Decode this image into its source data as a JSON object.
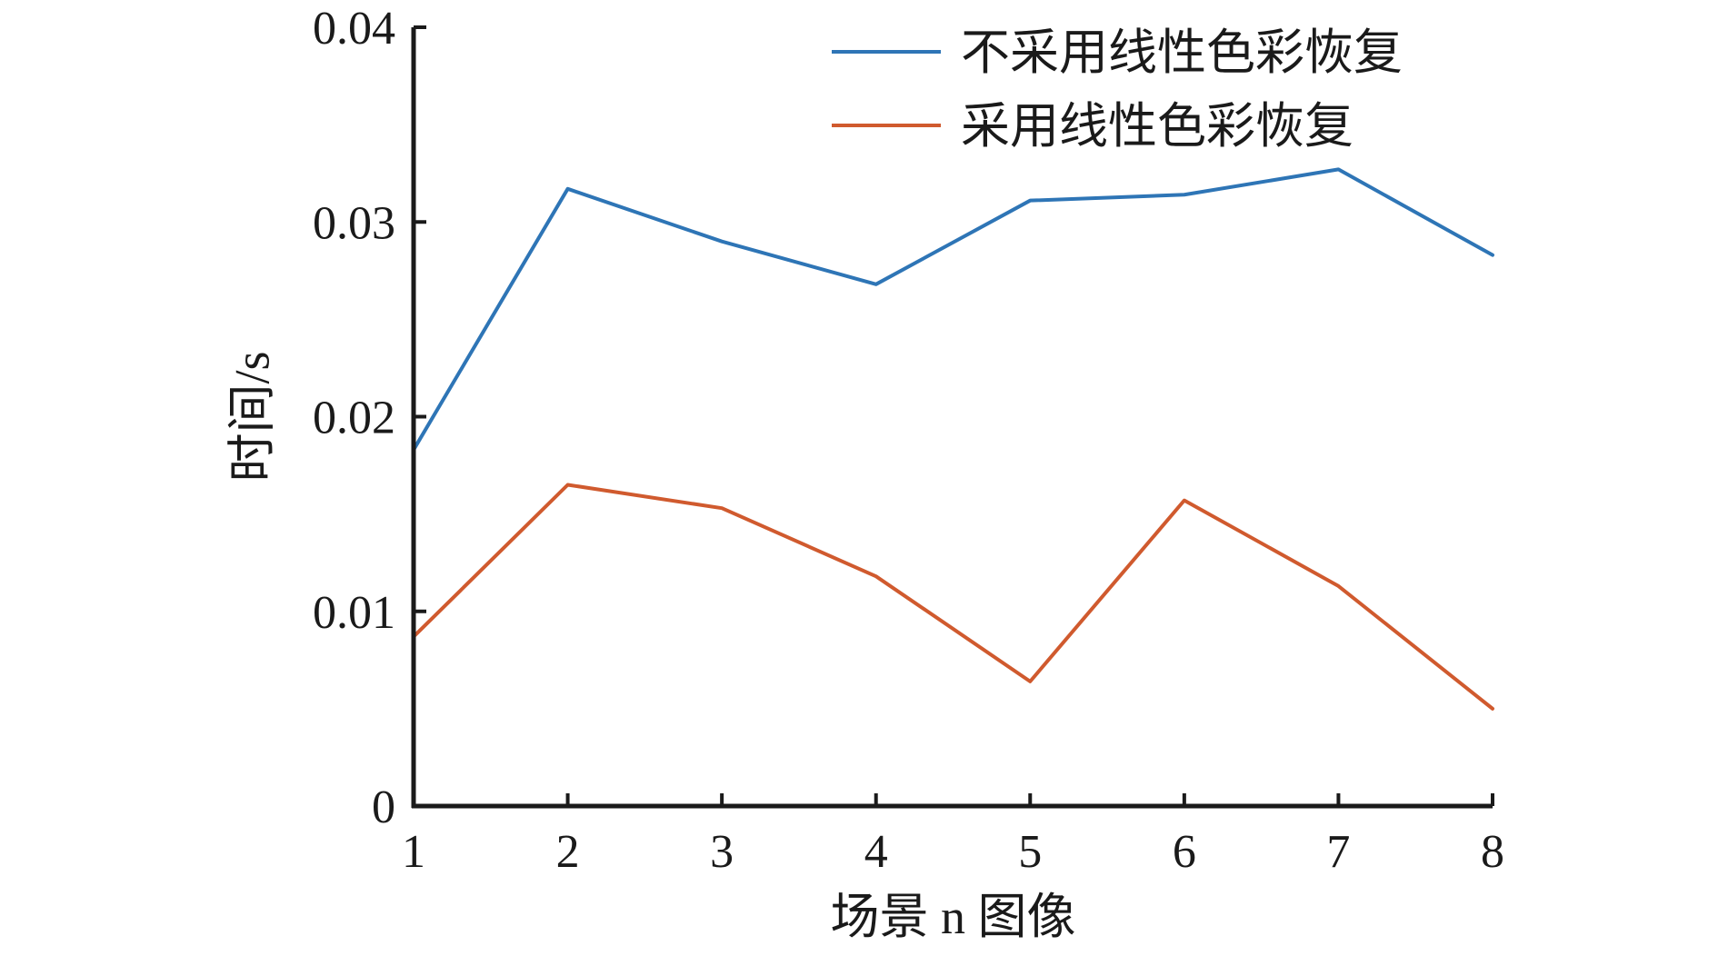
{
  "chart_data": {
    "type": "line",
    "title": "",
    "xlabel": "场景 n 图像",
    "ylabel": "时间/s",
    "x": [
      1,
      2,
      3,
      4,
      5,
      6,
      7,
      8
    ],
    "x_tick_labels": [
      "1",
      "2",
      "3",
      "4",
      "5",
      "6",
      "7",
      "8"
    ],
    "xlim": [
      1,
      8
    ],
    "ylim": [
      0,
      0.04
    ],
    "y_ticks": [
      0,
      0.01,
      0.02,
      0.03,
      0.04
    ],
    "y_tick_labels": [
      "0",
      "0.01",
      "0.02",
      "0.03",
      "0.04"
    ],
    "grid": false,
    "legend_position": "top-right",
    "series": [
      {
        "name": "不采用线性色彩恢复",
        "color": "#2e75b6",
        "values": [
          0.0183,
          0.0317,
          0.029,
          0.0268,
          0.0311,
          0.0314,
          0.0327,
          0.0283
        ]
      },
      {
        "name": "采用线性色彩恢复",
        "color": "#d05a2e",
        "values": [
          0.0087,
          0.0165,
          0.0153,
          0.0118,
          0.0064,
          0.0157,
          0.0113,
          0.005
        ]
      }
    ]
  }
}
